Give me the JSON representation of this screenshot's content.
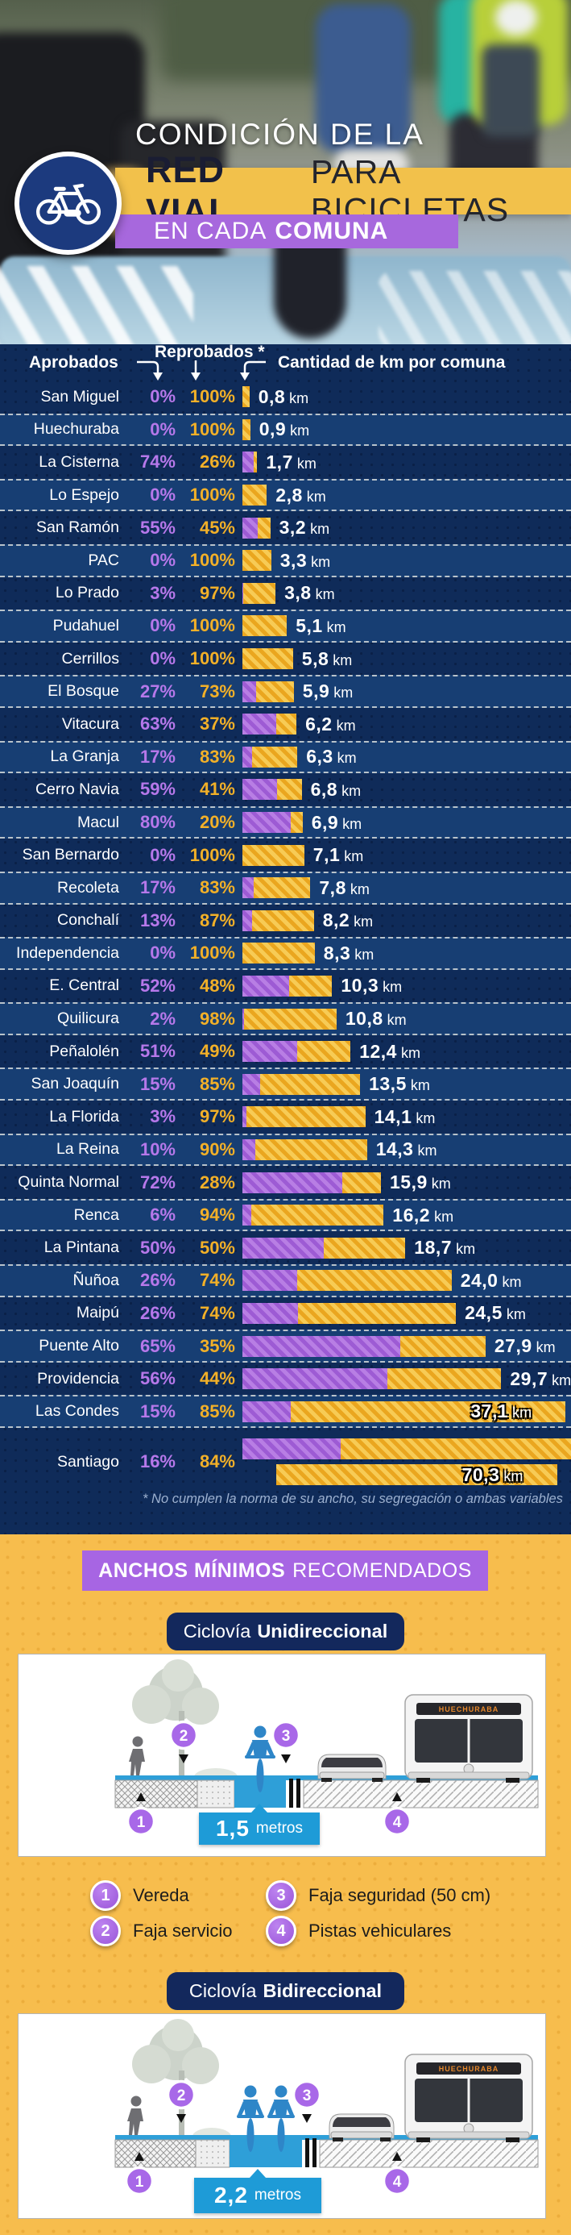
{
  "header": {
    "title": "CONDICIÓN DE LA",
    "band": {
      "bold": "RED VIAL",
      "rest": "PARA BICICLETAS"
    },
    "subband": {
      "light": "EN CADA",
      "bold": "COMUNA"
    },
    "badge_icon": "bicycle-icon"
  },
  "table": {
    "columns": {
      "aprobados": "Aprobados",
      "reprobados": "Reprobados *",
      "km": "Cantidad de km por comuna"
    },
    "footnote": "* No cumplen la norma de su ancho, su segregación o ambas variables",
    "rows": [
      {
        "comuna": "San Miguel",
        "aprobados": "0%",
        "reprobados": "100%",
        "km_label": "0,8",
        "km": 0.8
      },
      {
        "comuna": "Huechuraba",
        "aprobados": "0%",
        "reprobados": "100%",
        "km_label": "0,9",
        "km": 0.9
      },
      {
        "comuna": "La Cisterna",
        "aprobados": "74%",
        "reprobados": "26%",
        "km_label": "1,7",
        "km": 1.7
      },
      {
        "comuna": "Lo Espejo",
        "aprobados": "0%",
        "reprobados": "100%",
        "km_label": "2,8",
        "km": 2.8
      },
      {
        "comuna": "San Ramón",
        "aprobados": "55%",
        "reprobados": "45%",
        "km_label": "3,2",
        "km": 3.2
      },
      {
        "comuna": "PAC",
        "aprobados": "0%",
        "reprobados": "100%",
        "km_label": "3,3",
        "km": 3.3
      },
      {
        "comuna": "Lo Prado",
        "aprobados": "3%",
        "reprobados": "97%",
        "km_label": "3,8",
        "km": 3.8
      },
      {
        "comuna": "Pudahuel",
        "aprobados": "0%",
        "reprobados": "100%",
        "km_label": "5,1",
        "km": 5.1
      },
      {
        "comuna": "Cerrillos",
        "aprobados": "0%",
        "reprobados": "100%",
        "km_label": "5,8",
        "km": 5.8
      },
      {
        "comuna": "El Bosque",
        "aprobados": "27%",
        "reprobados": "73%",
        "km_label": "5,9",
        "km": 5.9
      },
      {
        "comuna": "Vitacura",
        "aprobados": "63%",
        "reprobados": "37%",
        "km_label": "6,2",
        "km": 6.2
      },
      {
        "comuna": "La Granja",
        "aprobados": "17%",
        "reprobados": "83%",
        "km_label": "6,3",
        "km": 6.3
      },
      {
        "comuna": "Cerro Navia",
        "aprobados": "59%",
        "reprobados": "41%",
        "km_label": "6,8",
        "km": 6.8
      },
      {
        "comuna": "Macul",
        "aprobados": "80%",
        "reprobados": "20%",
        "km_label": "6,9",
        "km": 6.9
      },
      {
        "comuna": "San Bernardo",
        "aprobados": "0%",
        "reprobados": "100%",
        "km_label": "7,1",
        "km": 7.1
      },
      {
        "comuna": "Recoleta",
        "aprobados": "17%",
        "reprobados": "83%",
        "km_label": "7,8",
        "km": 7.8
      },
      {
        "comuna": "Conchalí",
        "aprobados": "13%",
        "reprobados": "87%",
        "km_label": "8,2",
        "km": 8.2
      },
      {
        "comuna": "Independencia",
        "aprobados": "0%",
        "reprobados": "100%",
        "km_label": "8,3",
        "km": 8.3
      },
      {
        "comuna": "E. Central",
        "aprobados": "52%",
        "reprobados": "48%",
        "km_label": "10,3",
        "km": 10.3
      },
      {
        "comuna": "Quilicura",
        "aprobados": "2%",
        "reprobados": "98%",
        "km_label": "10,8",
        "km": 10.8
      },
      {
        "comuna": "Peñalolén",
        "aprobados": "51%",
        "reprobados": "49%",
        "km_label": "12,4",
        "km": 12.4
      },
      {
        "comuna": "San Joaquín",
        "aprobados": "15%",
        "reprobados": "85%",
        "km_label": "13,5",
        "km": 13.5
      },
      {
        "comuna": "La Florida",
        "aprobados": "3%",
        "reprobados": "97%",
        "km_label": "14,1",
        "km": 14.1
      },
      {
        "comuna": "La Reina",
        "aprobados": "10%",
        "reprobados": "90%",
        "km_label": "14,3",
        "km": 14.3
      },
      {
        "comuna": "Quinta Normal",
        "aprobados": "72%",
        "reprobados": "28%",
        "km_label": "15,9",
        "km": 15.9
      },
      {
        "comuna": "Renca",
        "aprobados": "6%",
        "reprobados": "94%",
        "km_label": "16,2",
        "km": 16.2
      },
      {
        "comuna": "La Pintana",
        "aprobados": "50%",
        "reprobados": "50%",
        "km_label": "18,7",
        "km": 18.7
      },
      {
        "comuna": "Ñuñoa",
        "aprobados": "26%",
        "reprobados": "74%",
        "km_label": "24,0",
        "km": 24.0
      },
      {
        "comuna": "Maipú",
        "aprobados": "26%",
        "reprobados": "74%",
        "km_label": "24,5",
        "km": 24.5
      },
      {
        "comuna": "Puente Alto",
        "aprobados": "65%",
        "reprobados": "35%",
        "km_label": "27,9",
        "km": 27.9
      },
      {
        "comuna": "Providencia",
        "aprobados": "56%",
        "reprobados": "44%",
        "km_label": "29,7",
        "km": 29.7
      },
      {
        "comuna": "Las Condes",
        "aprobados": "15%",
        "reprobados": "85%",
        "km_label": "37,1",
        "km": 37.1,
        "overlay": true
      },
      {
        "comuna": "Santiago",
        "aprobados": "16%",
        "reprobados": "84%",
        "km_label": "70,3",
        "km": 70.3,
        "overlay": true,
        "wrap": true
      }
    ],
    "km_unit": "km"
  },
  "section": {
    "banner": {
      "bold": "ANCHOS MÍNIMOS",
      "rest": "RECOMENDADOS"
    },
    "unidireccional": {
      "title_light": "Ciclovía",
      "title_bold": "Unidireccional",
      "width_value": "1,5",
      "width_unit": "metros",
      "bus_sign": "HUECHURABA"
    },
    "bidireccional": {
      "title_light": "Ciclovía",
      "title_bold": "Bidireccional",
      "width_value": "2,2",
      "width_unit": "metros",
      "bus_sign": "HUECHURABA"
    },
    "legend": [
      {
        "num": "1",
        "label": "Vereda"
      },
      {
        "num": "2",
        "label": "Faja servicio"
      },
      {
        "num": "3",
        "label": "Faja seguridad (50 cm)"
      },
      {
        "num": "4",
        "label": "Pistas vehiculares"
      }
    ]
  },
  "colors": {
    "navy": "#0f2b59",
    "row_alt": "#173e73",
    "purple_text": "#b678ea",
    "yellow_text": "#f2b028",
    "bar_purple": "#b87ee4",
    "bar_yellow": "#eaa61f",
    "band_yellow": "#f2c14b",
    "band_purple": "#a768dd",
    "section_yellow": "#f7bd4d",
    "banner_purple": "#a765e3",
    "pill_navy": "#13285c",
    "cycleway_blue": "#1e9bd7",
    "white": "#ffffff"
  },
  "chart_data": {
    "type": "bar",
    "title": "Condición de la red vial para bicicletas en cada comuna",
    "categories": [
      "San Miguel",
      "Huechuraba",
      "La Cisterna",
      "Lo Espejo",
      "San Ramón",
      "PAC",
      "Lo Prado",
      "Pudahuel",
      "Cerrillos",
      "El Bosque",
      "Vitacura",
      "La Granja",
      "Cerro Navia",
      "Macul",
      "San Bernardo",
      "Recoleta",
      "Conchalí",
      "Independencia",
      "E. Central",
      "Quilicura",
      "Peñalolén",
      "San Joaquín",
      "La Florida",
      "La Reina",
      "Quinta Normal",
      "Renca",
      "La Pintana",
      "Ñuñoa",
      "Maipú",
      "Puente Alto",
      "Providencia",
      "Las Condes",
      "Santiago"
    ],
    "series": [
      {
        "name": "Aprobados (%)",
        "values": [
          0,
          0,
          74,
          0,
          55,
          0,
          3,
          0,
          0,
          27,
          63,
          17,
          59,
          80,
          0,
          17,
          13,
          0,
          52,
          2,
          51,
          15,
          3,
          10,
          72,
          6,
          50,
          26,
          26,
          65,
          56,
          15,
          16
        ]
      },
      {
        "name": "Reprobados (%)",
        "values": [
          100,
          100,
          26,
          100,
          45,
          100,
          97,
          100,
          100,
          73,
          37,
          83,
          41,
          20,
          100,
          83,
          87,
          100,
          48,
          98,
          49,
          85,
          97,
          90,
          28,
          94,
          50,
          74,
          74,
          35,
          44,
          85,
          84
        ]
      },
      {
        "name": "Cantidad de km por comuna",
        "values": [
          0.8,
          0.9,
          1.7,
          2.8,
          3.2,
          3.3,
          3.8,
          5.1,
          5.8,
          5.9,
          6.2,
          6.3,
          6.8,
          6.9,
          7.1,
          7.8,
          8.2,
          8.3,
          10.3,
          10.8,
          12.4,
          13.5,
          14.1,
          14.3,
          15.9,
          16.2,
          18.7,
          24.0,
          24.5,
          27.9,
          29.7,
          37.1,
          70.3
        ]
      }
    ],
    "note": "* No cumplen la norma de su ancho, su segregación o ambas variables",
    "legend_position": "top",
    "grid": false
  }
}
